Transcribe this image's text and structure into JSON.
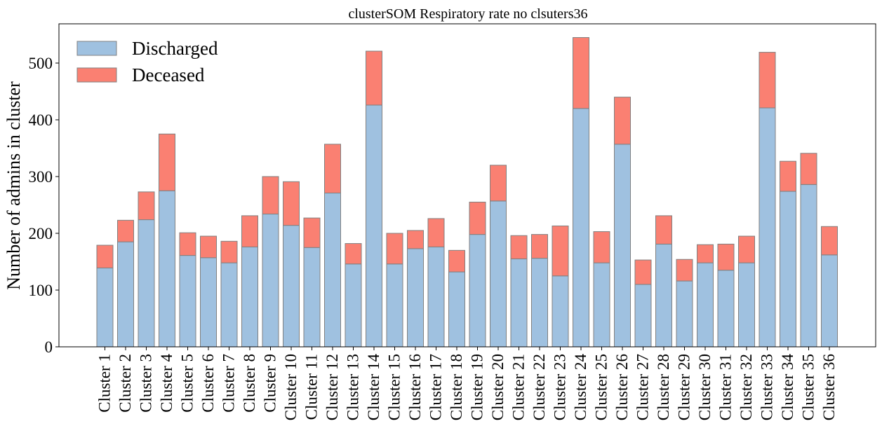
{
  "chart_data": {
    "type": "bar",
    "stacked": true,
    "title": "clusterSOM Respiratory rate no clsuters36",
    "xlabel": "",
    "ylabel": "Number of admins in cluster",
    "ylim": [
      0,
      570
    ],
    "yticks": [
      0,
      100,
      200,
      300,
      400,
      500
    ],
    "grid": false,
    "legend_position": "top-left",
    "categories": [
      "Cluster 1",
      "Cluster 2",
      "Cluster 3",
      "Cluster 4",
      "Cluster 5",
      "Cluster 6",
      "Cluster 7",
      "Cluster 8",
      "Cluster 9",
      "Cluster 10",
      "Cluster 11",
      "Cluster 12",
      "Cluster 13",
      "Cluster 14",
      "Cluster 15",
      "Cluster 16",
      "Cluster 17",
      "Cluster 18",
      "Cluster 19",
      "Cluster 20",
      "Cluster 21",
      "Cluster 22",
      "Cluster 23",
      "Cluster 24",
      "Cluster 25",
      "Cluster 26",
      "Cluster 27",
      "Cluster 28",
      "Cluster 29",
      "Cluster 30",
      "Cluster 31",
      "Cluster 32",
      "Cluster 33",
      "Cluster 34",
      "Cluster 35",
      "Cluster 36"
    ],
    "series": [
      {
        "name": "Discharged",
        "color": "#9fc1e0",
        "values": [
          139,
          185,
          224,
          275,
          161,
          157,
          148,
          176,
          234,
          214,
          175,
          271,
          146,
          426,
          146,
          173,
          176,
          132,
          198,
          257,
          155,
          156,
          125,
          420,
          148,
          357,
          110,
          181,
          116,
          148,
          135,
          148,
          421,
          274,
          286,
          162
        ]
      },
      {
        "name": "Deceased",
        "color": "#fa8072",
        "values": [
          40,
          38,
          49,
          100,
          40,
          38,
          38,
          55,
          66,
          77,
          52,
          86,
          36,
          95,
          54,
          32,
          50,
          38,
          57,
          63,
          41,
          42,
          88,
          125,
          55,
          83,
          43,
          50,
          38,
          32,
          46,
          47,
          98,
          53,
          55,
          50
        ]
      }
    ]
  }
}
